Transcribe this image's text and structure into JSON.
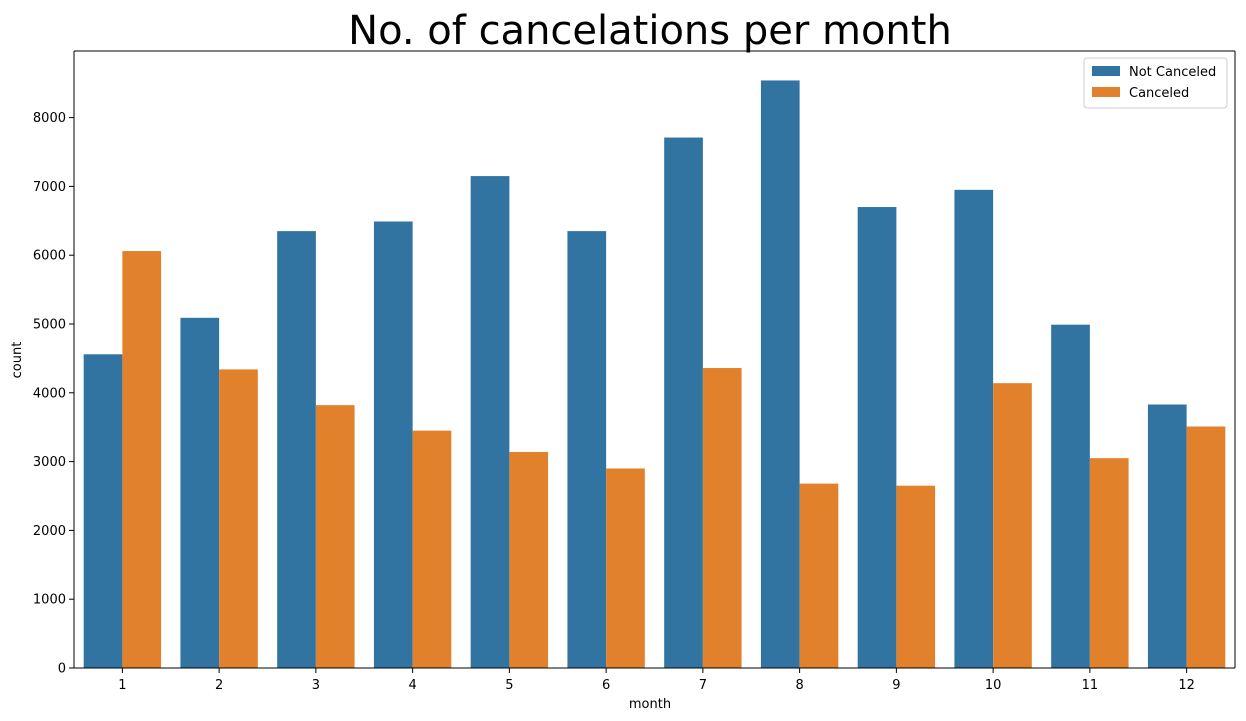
{
  "chart_data": {
    "type": "bar",
    "title": "No. of cancelations per month",
    "xlabel": "month",
    "ylabel": "count",
    "categories": [
      "1",
      "2",
      "3",
      "4",
      "5",
      "6",
      "7",
      "8",
      "9",
      "10",
      "11",
      "12"
    ],
    "series": [
      {
        "name": "Not Canceled",
        "color": "#3274a1",
        "values": [
          4560,
          5090,
          6350,
          6490,
          7150,
          6350,
          7710,
          8540,
          6700,
          6950,
          4990,
          3830
        ]
      },
      {
        "name": "Canceled",
        "color": "#e1812c",
        "values": [
          6060,
          4340,
          3820,
          3450,
          3140,
          2900,
          4360,
          2680,
          2650,
          4140,
          3050,
          3510
        ]
      }
    ],
    "yticks": [
      0,
      1000,
      2000,
      3000,
      4000,
      5000,
      6000,
      7000,
      8000
    ],
    "ylim": [
      0,
      8968
    ],
    "grid": false,
    "legend_position": "top-right"
  }
}
